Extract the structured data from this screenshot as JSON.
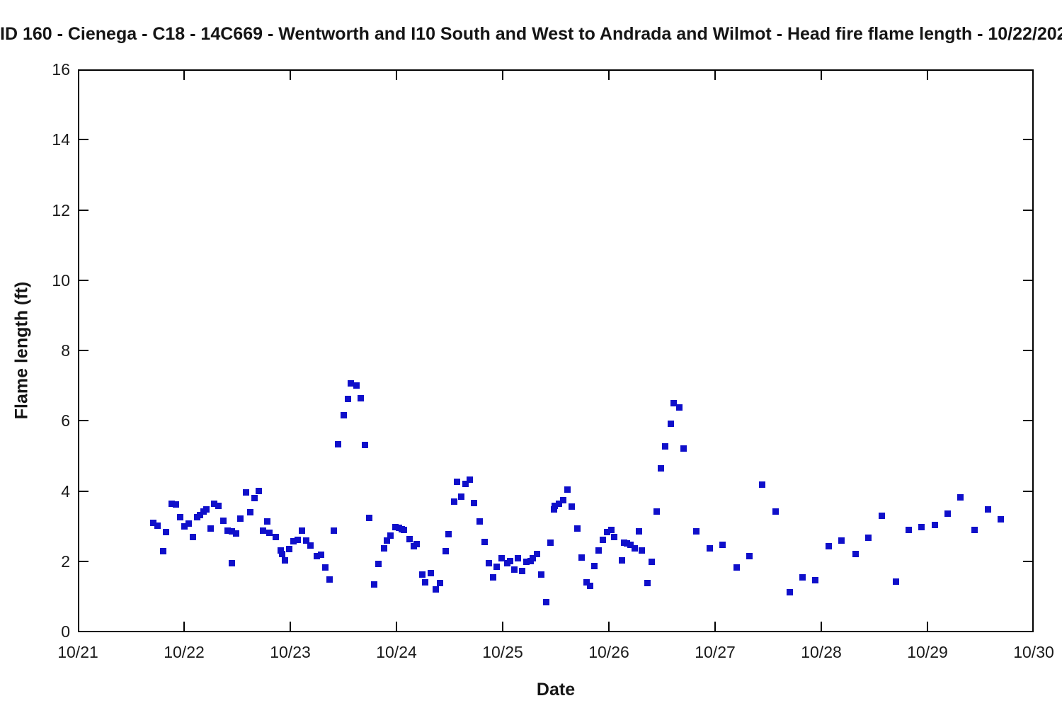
{
  "title": "ID 160 - Cienega - C18 - 14C669 - Wentworth and I10 South and West to Andrada and Wilmot - Head fire flame length - 10/22/202",
  "chart_data": {
    "type": "scatter",
    "title": "ID 160 - Cienega - C18 - 14C669 - Wentworth and I10 South and West to Andrada and Wilmot - Head fire flame length - 10/22/202",
    "xlabel": "Date",
    "ylabel": "Flame length (ft)",
    "marker": "square",
    "marker_color": "#0f0fca",
    "axis_color": "#000000",
    "text_color": "#1a1a1a",
    "grid": false,
    "legend": null,
    "x_unit": "days after 10/21",
    "xlim": [
      0,
      9
    ],
    "ylim": [
      0,
      16
    ],
    "x_tick_labels": [
      "10/21",
      "10/22",
      "10/23",
      "10/24",
      "10/25",
      "10/26",
      "10/27",
      "10/28",
      "10/29",
      "10/30"
    ],
    "y_ticks": [
      0,
      2,
      4,
      6,
      8,
      10,
      12,
      14,
      16
    ],
    "points": [
      [
        0.71,
        3.09
      ],
      [
        0.75,
        3.01
      ],
      [
        0.8,
        2.29
      ],
      [
        0.83,
        2.84
      ],
      [
        0.88,
        3.64
      ],
      [
        0.92,
        3.62
      ],
      [
        0.96,
        3.25
      ],
      [
        1.0,
        3.0
      ],
      [
        1.04,
        3.08
      ],
      [
        1.08,
        2.69
      ],
      [
        1.12,
        3.26
      ],
      [
        1.15,
        3.31
      ],
      [
        1.18,
        3.41
      ],
      [
        1.21,
        3.47
      ],
      [
        1.25,
        2.93
      ],
      [
        1.28,
        3.63
      ],
      [
        1.32,
        3.58
      ],
      [
        1.37,
        3.16
      ],
      [
        1.41,
        2.87
      ],
      [
        1.45,
        1.95
      ],
      [
        1.45,
        2.85
      ],
      [
        1.49,
        2.8
      ],
      [
        1.53,
        3.22
      ],
      [
        1.58,
        3.95
      ],
      [
        1.62,
        3.39
      ],
      [
        1.66,
        3.79
      ],
      [
        1.7,
        4.01
      ],
      [
        1.74,
        2.87
      ],
      [
        1.78,
        3.13
      ],
      [
        1.8,
        2.81
      ],
      [
        1.86,
        2.69
      ],
      [
        1.91,
        2.3
      ],
      [
        1.92,
        2.2
      ],
      [
        1.95,
        2.03
      ],
      [
        1.99,
        2.35
      ],
      [
        2.03,
        2.56
      ],
      [
        2.07,
        2.6
      ],
      [
        2.11,
        2.87
      ],
      [
        2.15,
        2.58
      ],
      [
        2.19,
        2.45
      ],
      [
        2.25,
        2.15
      ],
      [
        2.29,
        2.19
      ],
      [
        2.33,
        1.83
      ],
      [
        2.37,
        1.48
      ],
      [
        2.41,
        2.87
      ],
      [
        2.45,
        5.32
      ],
      [
        2.5,
        6.16
      ],
      [
        2.54,
        6.61
      ],
      [
        2.57,
        7.07
      ],
      [
        2.62,
        7.01
      ],
      [
        2.66,
        6.63
      ],
      [
        2.7,
        5.3
      ],
      [
        2.74,
        3.23
      ],
      [
        2.79,
        1.34
      ],
      [
        2.83,
        1.93
      ],
      [
        2.88,
        2.37
      ],
      [
        2.91,
        2.58
      ],
      [
        2.94,
        2.73
      ],
      [
        2.99,
        2.97
      ],
      [
        3.02,
        2.96
      ],
      [
        3.05,
        2.92
      ],
      [
        3.07,
        2.89
      ],
      [
        3.12,
        2.63
      ],
      [
        3.16,
        2.42
      ],
      [
        3.19,
        2.49
      ],
      [
        3.24,
        1.63
      ],
      [
        3.27,
        1.4
      ],
      [
        3.32,
        1.66
      ],
      [
        3.37,
        1.19
      ],
      [
        3.41,
        1.38
      ],
      [
        3.46,
        2.29
      ],
      [
        3.49,
        2.77
      ],
      [
        3.54,
        3.7
      ],
      [
        3.57,
        4.27
      ],
      [
        3.61,
        3.83
      ],
      [
        3.65,
        4.21
      ],
      [
        3.69,
        4.33
      ],
      [
        3.73,
        3.66
      ],
      [
        3.78,
        3.13
      ],
      [
        3.83,
        2.55
      ],
      [
        3.87,
        1.95
      ],
      [
        3.91,
        1.55
      ],
      [
        3.94,
        1.84
      ],
      [
        3.99,
        2.08
      ],
      [
        4.04,
        1.95
      ],
      [
        4.07,
        2.01
      ],
      [
        4.11,
        1.77
      ],
      [
        4.14,
        2.08
      ],
      [
        4.18,
        1.73
      ],
      [
        4.22,
        1.98
      ],
      [
        4.26,
        2.01
      ],
      [
        4.28,
        2.08
      ],
      [
        4.32,
        2.21
      ],
      [
        4.36,
        1.63
      ],
      [
        4.41,
        0.84
      ],
      [
        4.45,
        2.52
      ],
      [
        4.48,
        3.47
      ],
      [
        4.49,
        3.58
      ],
      [
        4.53,
        3.64
      ],
      [
        4.57,
        3.74
      ],
      [
        4.61,
        4.05
      ],
      [
        4.65,
        3.55
      ],
      [
        4.7,
        2.94
      ],
      [
        4.74,
        2.1
      ],
      [
        4.79,
        1.4
      ],
      [
        4.82,
        1.3
      ],
      [
        4.86,
        1.86
      ],
      [
        4.9,
        2.3
      ],
      [
        4.94,
        2.6
      ],
      [
        4.98,
        2.83
      ],
      [
        5.02,
        2.9
      ],
      [
        5.05,
        2.69
      ],
      [
        5.12,
        2.02
      ],
      [
        5.14,
        2.52
      ],
      [
        5.17,
        2.5
      ],
      [
        5.2,
        2.47
      ],
      [
        5.24,
        2.37
      ],
      [
        5.28,
        2.86
      ],
      [
        5.31,
        2.3
      ],
      [
        5.36,
        1.38
      ],
      [
        5.4,
        1.98
      ],
      [
        5.45,
        3.41
      ],
      [
        5.49,
        4.64
      ],
      [
        5.53,
        5.27
      ],
      [
        5.58,
        5.92
      ],
      [
        5.61,
        6.5
      ],
      [
        5.66,
        6.38
      ],
      [
        5.7,
        5.2
      ],
      [
        5.82,
        2.85
      ],
      [
        5.95,
        2.37
      ],
      [
        6.07,
        2.46
      ],
      [
        6.2,
        1.82
      ],
      [
        6.32,
        2.14
      ],
      [
        6.44,
        4.18
      ],
      [
        6.57,
        3.41
      ],
      [
        6.7,
        1.11
      ],
      [
        6.82,
        1.55
      ],
      [
        6.94,
        1.47
      ],
      [
        7.07,
        2.42
      ],
      [
        7.19,
        2.58
      ],
      [
        7.32,
        2.2
      ],
      [
        7.44,
        2.67
      ],
      [
        7.57,
        3.29
      ],
      [
        7.7,
        1.42
      ],
      [
        7.82,
        2.89
      ],
      [
        7.94,
        2.97
      ],
      [
        8.07,
        3.03
      ],
      [
        8.19,
        3.35
      ],
      [
        8.31,
        3.82
      ],
      [
        8.44,
        2.89
      ],
      [
        8.57,
        3.48
      ],
      [
        8.69,
        3.19
      ]
    ]
  }
}
